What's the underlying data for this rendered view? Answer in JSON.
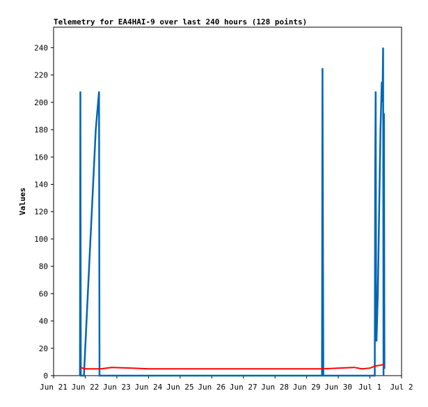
{
  "chart_data": {
    "type": "line",
    "title": "Telemetry for EA4HAI-9 over last 240 hours (128 points)",
    "xlabel": "",
    "ylabel": "Values",
    "xlim": [
      "2024-06-21T00:00",
      "2024-07-02T00:00"
    ],
    "ylim": [
      0,
      255
    ],
    "yticks": [
      0,
      20,
      40,
      60,
      80,
      100,
      120,
      140,
      160,
      180,
      200,
      220,
      240
    ],
    "xticks": [
      {
        "t": "2024-06-21T00:00",
        "label": "Jun 21"
      },
      {
        "t": "2024-06-22T00:00",
        "label": "Jun 22"
      },
      {
        "t": "2024-06-23T00:00",
        "label": "Jun 23"
      },
      {
        "t": "2024-06-24T00:00",
        "label": "Jun 24"
      },
      {
        "t": "2024-06-25T00:00",
        "label": "Jun 25"
      },
      {
        "t": "2024-06-26T00:00",
        "label": "Jun 26"
      },
      {
        "t": "2024-06-27T00:00",
        "label": "Jun 27"
      },
      {
        "t": "2024-06-28T00:00",
        "label": "Jun 28"
      },
      {
        "t": "2024-06-29T00:00",
        "label": "Jun 29"
      },
      {
        "t": "2024-06-30T00:00",
        "label": "Jun 30"
      },
      {
        "t": "2024-07-01T00:00",
        "label": "Jul 1"
      },
      {
        "t": "2024-07-02T00:00",
        "label": "Jul 2"
      }
    ],
    "grid": false,
    "legend": "none",
    "series": [
      {
        "color": "#0066b3",
        "points": [
          [
            "2024-06-21T20:00",
            0
          ],
          [
            "2024-06-21T20:20",
            208
          ],
          [
            "2024-06-21T20:40",
            0
          ],
          [
            "2024-06-21T23:00",
            0
          ],
          [
            "2024-06-22T02:00",
            60
          ],
          [
            "2024-06-22T05:00",
            120
          ],
          [
            "2024-06-22T08:00",
            180
          ],
          [
            "2024-06-22T10:30",
            208
          ],
          [
            "2024-06-22T10:50",
            0
          ],
          [
            "2024-06-29T11:40",
            0
          ],
          [
            "2024-06-29T12:00",
            225
          ],
          [
            "2024-06-29T12:20",
            112
          ],
          [
            "2024-06-29T12:40",
            0
          ],
          [
            "2024-07-01T03:40",
            0
          ],
          [
            "2024-07-01T04:00",
            145
          ],
          [
            "2024-07-01T04:20",
            208
          ],
          [
            "2024-07-01T04:40",
            60
          ],
          [
            "2024-07-01T05:00",
            25
          ],
          [
            "2024-07-01T06:00",
            60
          ],
          [
            "2024-07-01T07:00",
            120
          ],
          [
            "2024-07-01T08:00",
            180
          ],
          [
            "2024-07-01T09:00",
            215
          ],
          [
            "2024-07-01T09:30",
            200
          ],
          [
            "2024-07-01T10:00",
            240
          ],
          [
            "2024-07-01T10:20",
            0
          ],
          [
            "2024-07-01T10:40",
            192
          ],
          [
            "2024-07-01T11:00",
            5
          ]
        ]
      },
      {
        "color": "#ff0000",
        "points": [
          [
            "2024-06-21T20:00",
            6
          ],
          [
            "2024-06-22T00:00",
            5
          ],
          [
            "2024-06-22T12:00",
            5
          ],
          [
            "2024-06-22T20:00",
            6
          ],
          [
            "2024-06-23T12:00",
            5.5
          ],
          [
            "2024-06-24T00:00",
            5
          ],
          [
            "2024-06-25T00:00",
            5
          ],
          [
            "2024-06-26T00:00",
            5
          ],
          [
            "2024-06-27T00:00",
            5
          ],
          [
            "2024-06-28T00:00",
            5
          ],
          [
            "2024-06-29T00:00",
            5
          ],
          [
            "2024-06-29T10:00",
            5
          ],
          [
            "2024-06-29T12:00",
            5
          ],
          [
            "2024-06-30T00:00",
            5.5
          ],
          [
            "2024-06-30T12:00",
            6
          ],
          [
            "2024-06-30T18:00",
            5
          ],
          [
            "2024-07-01T00:00",
            5.5
          ],
          [
            "2024-07-01T04:00",
            7
          ],
          [
            "2024-07-01T10:00",
            8
          ],
          [
            "2024-07-01T11:00",
            7
          ]
        ]
      }
    ]
  }
}
